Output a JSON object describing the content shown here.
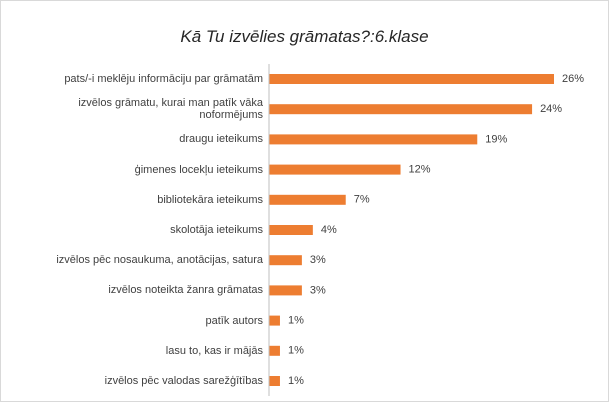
{
  "chart_data": {
    "type": "bar",
    "orientation": "horizontal",
    "title": "Kā Tu izvēlies grāmatas?:6.klase",
    "categories": [
      "pats/-i meklēju informāciju par grāmatām",
      "izvēlos grāmatu, kurai man patīk vāka noformējums",
      "draugu ieteikums",
      "ģimenes locekļu ieteikums",
      "bibliotekāra ieteikums",
      "skolotāja ieteikums",
      "izvēlos pēc nosaukuma, anotācijas, satura",
      "izvēlos noteikta žanra grāmatas",
      "patīk autors",
      "lasu to, kas ir mājās",
      "izvēlos pēc valodas sarežģītības"
    ],
    "values": [
      26,
      24,
      19,
      12,
      7,
      4,
      3,
      3,
      1,
      1,
      1
    ],
    "value_labels": [
      "26%",
      "24%",
      "19%",
      "12%",
      "7%",
      "4%",
      "3%",
      "3%",
      "1%",
      "1%",
      "1%"
    ],
    "color": "#ed7d31"
  }
}
